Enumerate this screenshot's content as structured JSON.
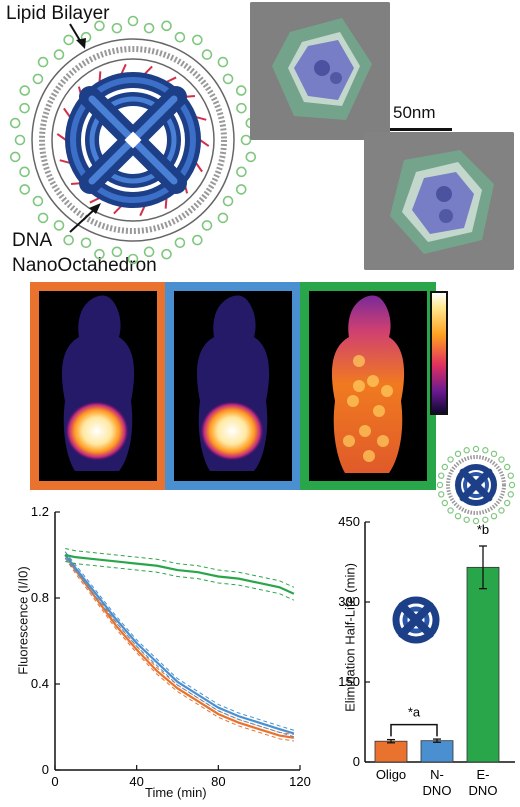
{
  "figure": {
    "labels": {
      "lipid_bilayer": "Lipid Bilayer",
      "dna": "DNA",
      "nano_octahedron": "NanoOctahedron",
      "scale_bar": "50nm"
    },
    "colors": {
      "oligo": "#e8722e",
      "n_dno": "#4a90d0",
      "e_dno": "#2aa64a",
      "lipid_particles": "#7fc77f",
      "dna_blue": "#2a56a8"
    },
    "panels": [
      {
        "name": "oligo",
        "border_color": "#e8722e"
      },
      {
        "name": "n-dno",
        "border_color": "#4a90d0"
      },
      {
        "name": "e-dno",
        "border_color": "#2aa64a"
      }
    ]
  },
  "chart_data": [
    {
      "type": "line",
      "title": "",
      "xlabel": "Time (min)",
      "ylabel": "Fluorescence (I/I0)",
      "xlim": [
        0,
        120
      ],
      "ylim": [
        0,
        1.2
      ],
      "x_ticks": [
        "0",
        "40",
        "80",
        "120"
      ],
      "y_ticks": [
        "0",
        "0.4",
        "0.8",
        "1.2"
      ],
      "grid": false,
      "x": [
        5,
        10,
        20,
        30,
        40,
        50,
        60,
        70,
        80,
        90,
        100,
        110,
        117
      ],
      "series": [
        {
          "values": [
            1.0,
            0.93,
            0.8,
            0.67,
            0.56,
            0.46,
            0.38,
            0.32,
            0.26,
            0.22,
            0.19,
            0.16,
            0.15
          ]
        },
        {
          "values": [
            1.0,
            0.94,
            0.82,
            0.7,
            0.59,
            0.5,
            0.41,
            0.35,
            0.29,
            0.25,
            0.22,
            0.19,
            0.17
          ]
        },
        {
          "values": [
            1.0,
            0.99,
            0.98,
            0.97,
            0.96,
            0.95,
            0.93,
            0.92,
            0.9,
            0.89,
            0.87,
            0.85,
            0.82
          ]
        }
      ]
    },
    {
      "type": "bar",
      "title": "",
      "xlabel": "",
      "ylabel": "Elimination Half-Life (min)",
      "ylim": [
        0,
        450
      ],
      "y_ticks": [
        "0",
        "150",
        "300",
        "450"
      ],
      "categories": [
        "Oligo",
        "N-\nDNO",
        "E-\nDNO"
      ],
      "category_lines": [
        [
          "Oligo"
        ],
        [
          "N-",
          "DNO"
        ],
        [
          "E-",
          "DNO"
        ]
      ],
      "values": [
        39,
        40,
        365
      ],
      "errors": [
        3,
        3,
        40
      ],
      "annotations": {
        "a": "*a",
        "b": "*b"
      }
    }
  ]
}
